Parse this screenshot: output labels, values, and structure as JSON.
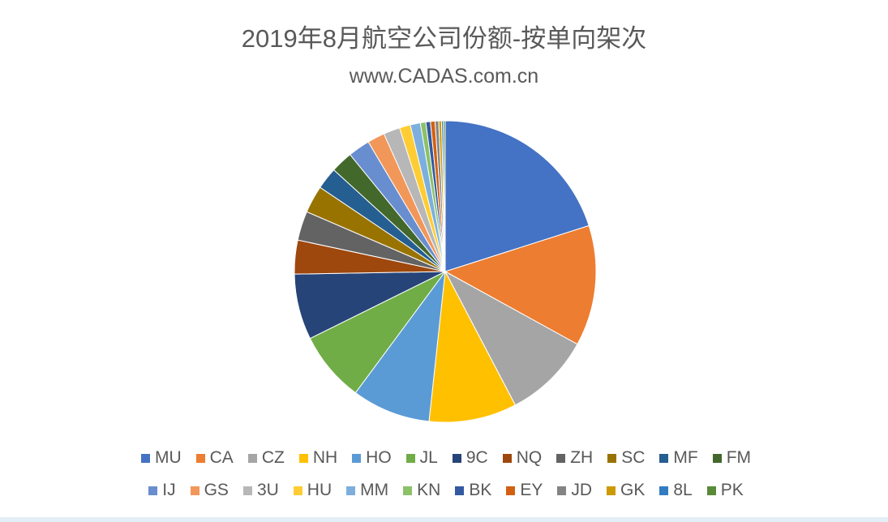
{
  "chart_data": {
    "type": "pie",
    "title": "2019年8月航空公司份额-按单向架次",
    "subtitle": "www.CADAS.com.cn",
    "legend_position": "bottom",
    "categories": [
      "MU",
      "CA",
      "CZ",
      "NH",
      "HO",
      "JL",
      "9C",
      "NQ",
      "ZH",
      "SC",
      "MF",
      "FM",
      "IJ",
      "GS",
      "3U",
      "HU",
      "MM",
      "KN",
      "BK",
      "EY",
      "JD",
      "GK",
      "8L",
      "PK"
    ],
    "values": [
      20.5,
      13.2,
      9.5,
      9.6,
      8.6,
      7.7,
      7.2,
      3.7,
      3.2,
      3.0,
      2.4,
      2.4,
      2.4,
      1.9,
      1.8,
      1.2,
      1.1,
      0.6,
      0.5,
      0.5,
      0.4,
      0.3,
      0.2,
      0.2
    ],
    "colors": [
      "#4472C4",
      "#ED7D31",
      "#A5A5A5",
      "#FFC000",
      "#5B9BD5",
      "#70AD47",
      "#264478",
      "#9E480E",
      "#636363",
      "#997300",
      "#255E91",
      "#43682B",
      "#698ED0",
      "#F1975A",
      "#B7B7B7",
      "#FFCD33",
      "#7CAFDD",
      "#8CC168",
      "#335AA1",
      "#D26012",
      "#848484",
      "#CC9A00",
      "#327DC2",
      "#5A8A39"
    ]
  }
}
